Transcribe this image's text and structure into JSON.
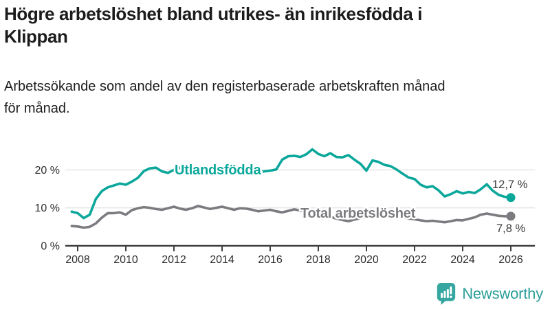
{
  "header": {
    "title_lines": [
      "Högre arbetslöshet bland utrikes- än inrikesfödda i",
      "Klippan"
    ],
    "subtitle_lines": [
      "Arbetssökande som andel av den registerbaserade arbetskraften månad",
      "för månad."
    ]
  },
  "colors": {
    "accent_teal": "#0ba79b",
    "series_gray": "#7c7c80",
    "axis": "#3f3f3f",
    "grid": "#e3e3e3",
    "text": "#1c1c1c",
    "annotation": "#3b3b3b",
    "logo": "#35a7a0",
    "logo_text": "#2b9e99"
  },
  "chart_data": {
    "type": "line",
    "title": "Högre arbetslöshet bland utrikes- än inrikesfödda i Klippan",
    "subtitle": "Arbetssökande som andel av den registerbaserade arbetskraften månad för månad.",
    "unit": "%",
    "grid": "horizontal-light",
    "legend_position": "labels-on-lines",
    "xlim": [
      2007.5,
      2026.5
    ],
    "ylim": [
      0,
      27
    ],
    "x": [
      2007.75,
      2008,
      2008.25,
      2008.5,
      2008.75,
      2009,
      2009.25,
      2009.5,
      2009.75,
      2010,
      2010.25,
      2010.5,
      2010.75,
      2011,
      2011.25,
      2011.5,
      2011.75,
      2012,
      2012.25,
      2012.5,
      2012.75,
      2013,
      2013.25,
      2013.5,
      2013.75,
      2014,
      2014.25,
      2014.5,
      2014.75,
      2015,
      2015.25,
      2015.5,
      2015.75,
      2016,
      2016.25,
      2016.5,
      2016.75,
      2017,
      2017.25,
      2017.5,
      2017.75,
      2018,
      2018.25,
      2018.5,
      2018.75,
      2019,
      2019.25,
      2019.5,
      2019.75,
      2020,
      2020.25,
      2020.5,
      2020.75,
      2021,
      2021.25,
      2021.5,
      2021.75,
      2022,
      2022.25,
      2022.5,
      2022.75,
      2023,
      2023.25,
      2023.5,
      2023.75,
      2024,
      2024.25,
      2024.5,
      2024.75,
      2025,
      2025.25,
      2025.5,
      2025.75,
      2026
    ],
    "series": [
      {
        "name": "Utlandsfödda",
        "color": "#0ba79b",
        "end_label": "12,7 %",
        "end_value": 12.7,
        "values": [
          9.0,
          8.6,
          7.3,
          8.2,
          12.3,
          14.4,
          15.4,
          15.9,
          16.4,
          16.1,
          16.9,
          17.9,
          19.7,
          20.4,
          20.6,
          19.6,
          19.2,
          20.0,
          20.6,
          19.5,
          19.1,
          19.3,
          19.7,
          19.2,
          19.5,
          19.8,
          19.4,
          19.2,
          19.6,
          19.4,
          19.7,
          19.3,
          19.6,
          19.8,
          20.1,
          22.7,
          23.6,
          23.7,
          23.4,
          24.1,
          25.4,
          24.2,
          23.6,
          24.4,
          23.4,
          23.3,
          23.9,
          22.7,
          21.6,
          19.8,
          22.5,
          22.1,
          21.3,
          21.0,
          20.1,
          19.0,
          18.0,
          17.6,
          16.1,
          15.4,
          15.7,
          14.6,
          13.0,
          13.6,
          14.4,
          13.8,
          14.2,
          13.9,
          14.9,
          16.2,
          14.5,
          13.4,
          12.9,
          12.7
        ]
      },
      {
        "name": "Total arbetslöshet",
        "color": "#7c7c80",
        "end_label": "7,8 %",
        "end_value": 7.8,
        "values": [
          5.2,
          5.1,
          4.8,
          5.0,
          5.9,
          7.4,
          8.6,
          8.6,
          8.8,
          8.2,
          9.4,
          9.9,
          10.2,
          10.0,
          9.7,
          9.5,
          9.9,
          10.3,
          9.8,
          9.5,
          9.9,
          10.5,
          10.1,
          9.7,
          10.0,
          10.3,
          9.9,
          9.5,
          9.9,
          9.8,
          9.5,
          9.1,
          9.3,
          9.5,
          9.1,
          8.8,
          9.2,
          9.6,
          9.3,
          9.0,
          8.7,
          8.4,
          8.0,
          7.6,
          7.2,
          6.8,
          6.5,
          6.9,
          7.3,
          7.8,
          9.0,
          8.8,
          8.4,
          8.2,
          7.9,
          7.5,
          7.2,
          7.0,
          6.7,
          6.5,
          6.6,
          6.4,
          6.2,
          6.5,
          6.8,
          6.7,
          7.1,
          7.5,
          8.2,
          8.5,
          8.2,
          7.9,
          7.8,
          7.8
        ]
      }
    ],
    "xticks": [
      {
        "value": 2008,
        "label": "2008"
      },
      {
        "value": 2010,
        "label": "2010"
      },
      {
        "value": 2012,
        "label": "2012"
      },
      {
        "value": 2014,
        "label": "2014"
      },
      {
        "value": 2016,
        "label": "2016"
      },
      {
        "value": 2018,
        "label": "2018"
      },
      {
        "value": 2020,
        "label": "2020"
      },
      {
        "value": 2022,
        "label": "2022"
      },
      {
        "value": 2024,
        "label": "2024"
      },
      {
        "value": 2026,
        "label": "2026"
      }
    ],
    "yticks": [
      {
        "value": 0,
        "label": "0 %"
      },
      {
        "value": 10,
        "label": "10 %"
      },
      {
        "value": 20,
        "label": "20 %"
      }
    ]
  },
  "footer": {
    "brand_label": "Newsworthy"
  }
}
